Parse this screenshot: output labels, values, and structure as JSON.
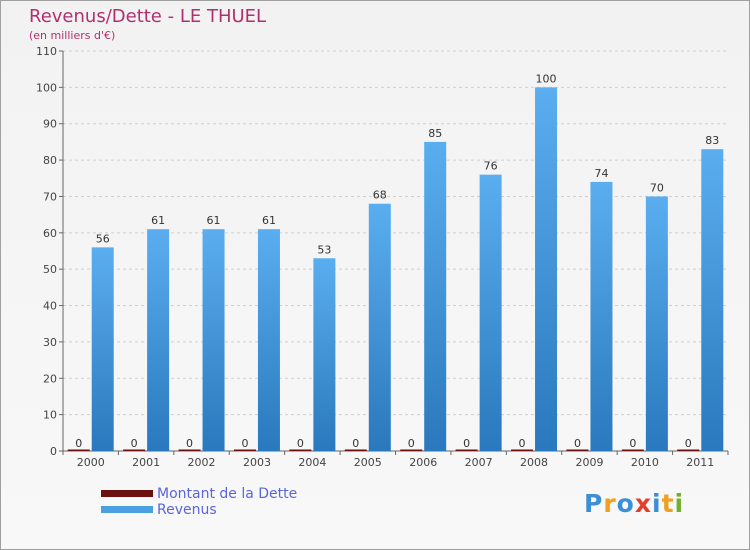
{
  "header": {
    "title": "Revenus/Dette - LE THUEL",
    "subtitle": "(en milliers d'€)"
  },
  "chart_data": {
    "type": "bar",
    "title": "Revenus/Dette - LE THUEL",
    "ylabel": "(en milliers d'€)",
    "xlabel": "",
    "categories": [
      "2000",
      "2001",
      "2002",
      "2003",
      "2004",
      "2005",
      "2006",
      "2007",
      "2008",
      "2009",
      "2010",
      "2011"
    ],
    "ylim": [
      0,
      110
    ],
    "yticks": [
      0,
      10,
      20,
      30,
      40,
      50,
      60,
      70,
      80,
      90,
      100,
      110
    ],
    "grid": true,
    "legend_position": "bottom-left",
    "series": [
      {
        "name": "Montant de la Dette",
        "color": "#6b0f0f",
        "values": [
          0,
          0,
          0,
          0,
          0,
          0,
          0,
          0,
          0,
          0,
          0,
          0
        ]
      },
      {
        "name": "Revenus",
        "color": "#4aa0e0",
        "values": [
          56,
          61,
          61,
          61,
          53,
          68,
          85,
          76,
          100,
          74,
          70,
          83
        ]
      }
    ]
  },
  "legend": {
    "items": [
      {
        "label": "Montant de la Dette",
        "color": "#6b0f0f"
      },
      {
        "label": "Revenus",
        "color": "#4aa0e0"
      }
    ]
  },
  "brand": {
    "name": "Proxiti",
    "letter_colors": [
      "#3a8fd6",
      "#f0a020",
      "#3a8fd6",
      "#e0402a",
      "#3a8fd6",
      "#f0a020",
      "#70b030"
    ]
  }
}
